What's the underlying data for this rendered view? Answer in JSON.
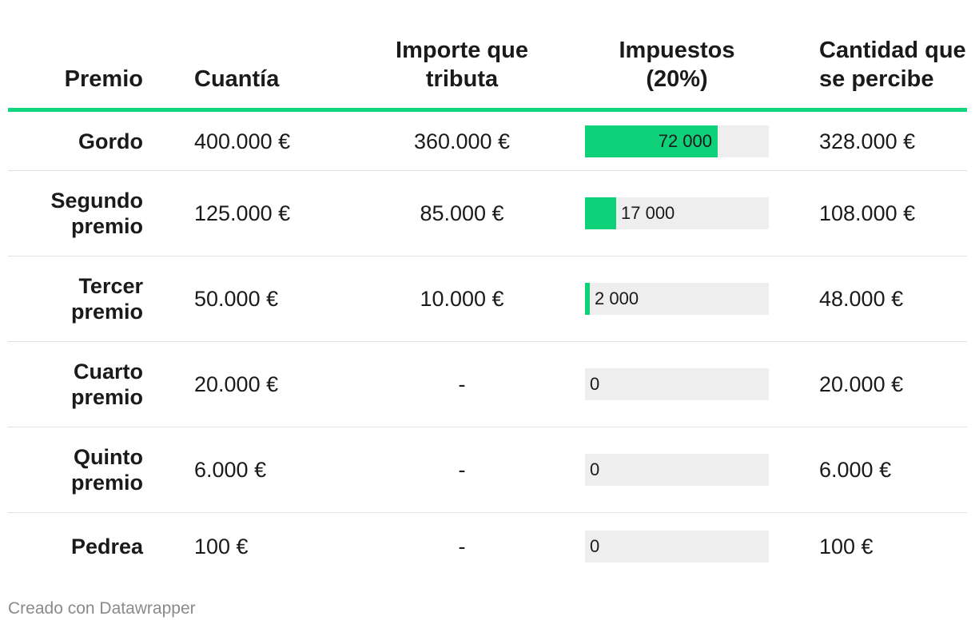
{
  "chart_data": {
    "type": "table",
    "columns": [
      "Premio",
      "Cuantía",
      "Importe que tributa",
      "Impuestos (20%)",
      "Cantidad que se percibe"
    ],
    "header_lines": {
      "premio": [
        "Premio"
      ],
      "cuantia": [
        "Cuantía"
      ],
      "importe": [
        "Importe que",
        "tributa"
      ],
      "impuestos": [
        "Impuestos",
        "(20%)"
      ],
      "cantidad": [
        "Cantidad que",
        "se percibe"
      ]
    },
    "bar_max": 72000,
    "bar_color": "#0fd17a",
    "bar_bg_color": "#eeeeee",
    "accent_color": "#12d67c",
    "rows": [
      {
        "premio": [
          "Gordo"
        ],
        "cuantia": "400.000 €",
        "importe": "360.000 €",
        "impuestos": 72000,
        "impuestos_label": "72 000",
        "cantidad": "328.000 €"
      },
      {
        "premio": [
          "Segundo",
          "premio"
        ],
        "cuantia": "125.000 €",
        "importe": "85.000 €",
        "impuestos": 17000,
        "impuestos_label": "17 000",
        "cantidad": "108.000 €"
      },
      {
        "premio": [
          "Tercer",
          "premio"
        ],
        "cuantia": "50.000 €",
        "importe": "10.000 €",
        "impuestos": 2000,
        "impuestos_label": "2 000",
        "cantidad": "48.000 €"
      },
      {
        "premio": [
          "Cuarto",
          "premio"
        ],
        "cuantia": "20.000 €",
        "importe": "-",
        "impuestos": 0,
        "impuestos_label": "0",
        "cantidad": "20.000 €"
      },
      {
        "premio": [
          "Quinto",
          "premio"
        ],
        "cuantia": "6.000 €",
        "importe": "-",
        "impuestos": 0,
        "impuestos_label": "0",
        "cantidad": "6.000 €"
      },
      {
        "premio": [
          "Pedrea"
        ],
        "cuantia": "100 €",
        "importe": "-",
        "impuestos": 0,
        "impuestos_label": "0",
        "cantidad": "100 €"
      }
    ]
  },
  "footer": {
    "credit": "Creado con Datawrapper"
  }
}
